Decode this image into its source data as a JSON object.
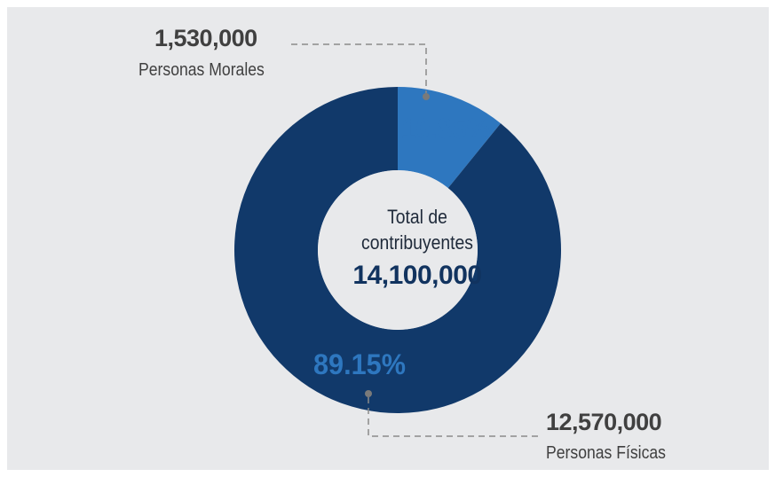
{
  "chart_data": {
    "type": "pie",
    "variant": "donut",
    "center_label": "Total de contribuyentes",
    "center_value": "14,100,000",
    "slices": [
      {
        "name": "Personas Morales",
        "value": 1530000,
        "value_label": "1,530,000",
        "percent": 10.85,
        "percent_label": "10.85%",
        "color": "#2e77bf"
      },
      {
        "name": "Personas Físicas",
        "value": 12570000,
        "value_label": "12,570,000",
        "percent": 89.15,
        "percent_label": "89.15%",
        "color": "#11396a"
      }
    ],
    "percent_label_color": "#2e77bf",
    "background": "#e8e9eb",
    "center_color": "#e8e9eb"
  }
}
